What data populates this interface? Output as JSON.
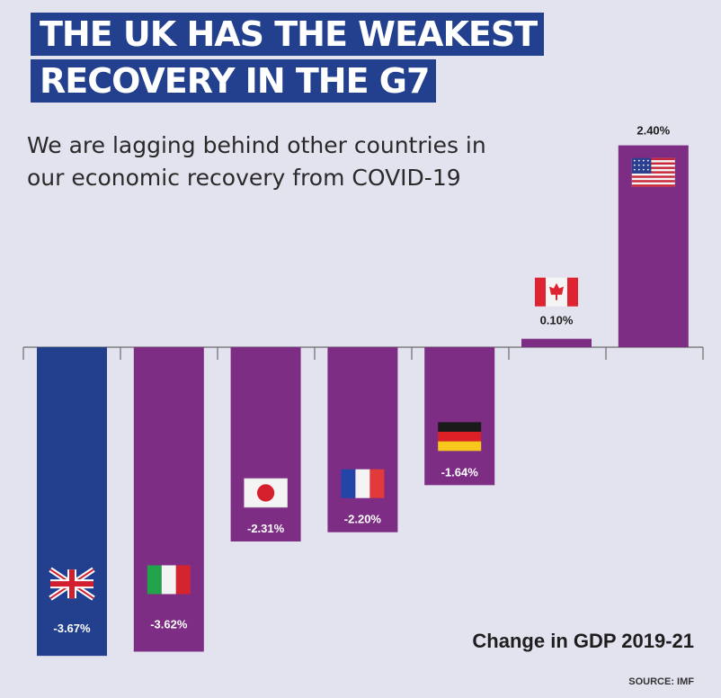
{
  "header": {
    "title_line1": "THE UK HAS THE WEAKEST",
    "title_line2": "RECOVERY IN THE G7",
    "subtitle_line1": "We are lagging behind other countries in",
    "subtitle_line2": "our economic recovery from COVID-19"
  },
  "footer": {
    "gdp_label": "Change in GDP 2019-21",
    "source": "SOURCE: IMF"
  },
  "colors": {
    "background": "#e3e3ef",
    "uk_bar": "#23408f",
    "other_bar": "#7d2d84",
    "title_bg": "#23408f"
  },
  "chart_data": {
    "type": "bar",
    "categories": [
      "UK",
      "Italy",
      "Japan",
      "France",
      "Germany",
      "Canada",
      "USA"
    ],
    "values": [
      -3.67,
      -3.62,
      -2.31,
      -2.2,
      -1.64,
      0.1,
      2.4
    ],
    "value_labels": [
      "-3.67%",
      "-3.62%",
      "-2.31%",
      "-2.20%",
      "-1.64%",
      "0.10%",
      "2.40%"
    ],
    "flags": [
      "uk-flag-icon",
      "italy-flag-icon",
      "japan-flag-icon",
      "france-flag-icon",
      "germany-flag-icon",
      "canada-flag-icon",
      "usa-flag-icon"
    ],
    "title": "Change in GDP 2019-21",
    "xlabel": "",
    "ylabel": "",
    "ylim": [
      -4.5,
      2.6
    ],
    "grid": false,
    "legend": "none"
  }
}
